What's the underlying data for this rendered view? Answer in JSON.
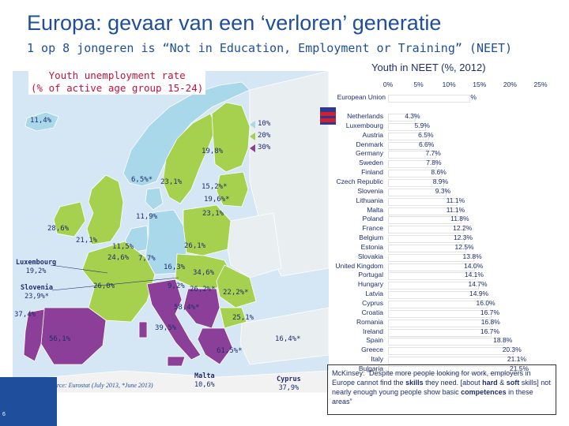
{
  "title": "Europa: gevaar van een ‘verloren’ generatie",
  "subtitle": "1 op 8 jongeren is “Not in Education, Employment or Training” (NEET)",
  "map": {
    "title_line1": "Youth unemployment rate",
    "title_line2": "(% of active age group 15-24)",
    "legend": [
      "10%",
      "20%",
      "30%"
    ],
    "labels": [
      {
        "text": "11,4%"
      },
      {
        "text": "19,8%"
      },
      {
        "text": "6,5%*"
      },
      {
        "text": "23,1%"
      },
      {
        "text": "15,2%*"
      },
      {
        "text": "19,6%*"
      },
      {
        "text": "23,1%"
      },
      {
        "text": "11,9%"
      },
      {
        "text": "28,6%"
      },
      {
        "text": "21,1%"
      },
      {
        "text": "11,5%"
      },
      {
        "text": "24,6%"
      },
      {
        "text": "7,7%"
      },
      {
        "text": "26,1%"
      },
      {
        "text": "16,3%"
      },
      {
        "text": "34,6%"
      },
      {
        "text": "26,0%"
      },
      {
        "text": "9,2%"
      },
      {
        "text": "26,2%*"
      },
      {
        "text": "22,2%*"
      },
      {
        "text": "58,4%*"
      },
      {
        "text": "25,1%"
      },
      {
        "text": "39,5%"
      },
      {
        "text": "37,4%"
      },
      {
        "text": "56,1%"
      },
      {
        "text": "16,4%*"
      },
      {
        "text": "61,5%*"
      }
    ],
    "luxembourg_name": "Luxembourg",
    "luxembourg_value": "19,2%",
    "slovenia_name": "Slovenia",
    "slovenia_value": "23,9%*",
    "malta_name": "Malta",
    "malta_value": "10,6%",
    "cyprus_name": "Cyprus",
    "cyprus_value": "37,9%",
    "source": "Source: Eurostat (July 2013, *June 2013)"
  },
  "neet": {
    "title": "Youth in NEET (%, 2012)",
    "ticks": [
      "0%",
      "5%",
      "10%",
      "15%",
      "20%",
      "25%"
    ],
    "eu_label": "European Union",
    "eu_value": "13.2%"
  },
  "chart_data": {
    "type": "bar",
    "title": "Youth in NEET (%, 2012)",
    "xlim": [
      0,
      25
    ],
    "categories": [
      "Netherlands",
      "Luxembourg",
      "Austria",
      "Denmark",
      "Germany",
      "Sweden",
      "Finland",
      "Czech Republic",
      "Slovenia",
      "Lithuania",
      "Malta",
      "Poland",
      "France",
      "Belgium",
      "Estonia",
      "Slovakia",
      "United Kingdom",
      "Portugal",
      "Hungary",
      "Latvia",
      "Cyprus",
      "Croatia",
      "Romania",
      "Ireland",
      "Spain",
      "Greece",
      "Italy",
      "Bulgaria"
    ],
    "values": [
      4.3,
      5.9,
      6.5,
      6.6,
      7.7,
      7.8,
      8.6,
      8.9,
      9.3,
      11.1,
      11.1,
      11.8,
      12.2,
      12.3,
      12.5,
      13.8,
      14.0,
      14.1,
      14.7,
      14.9,
      16.0,
      16.7,
      16.8,
      16.7,
      18.8,
      20.3,
      21.1,
      21.5
    ],
    "labels": [
      "4.3%",
      "5.9%",
      "6.5%",
      "6.6%",
      "7.7%",
      "7.8%",
      "8.6%",
      "8.9%",
      "9.3%",
      "11.1%",
      "11.1%",
      "11.8%",
      "12.2%",
      "12.3%",
      "12.5%",
      "13.8%",
      "14.0%",
      "14.1%",
      "14.7%",
      "14.9%",
      "16.0%",
      "16.7%",
      "16.8%",
      "16.7%",
      "18.8%",
      "20.3%",
      "21.1%",
      "21.5%"
    ],
    "eu_value": 13.2
  },
  "quote": {
    "p1": "McKinsey: “Despite more people looking for work, employers in Europe cannot find the ",
    "b1": "skills",
    "p2": " they need. [about ",
    "b2": "hard",
    "p3": " & ",
    "b3": "soft",
    "p4": " skills] not nearly enough young people show basic ",
    "b4": "competences",
    "p5": " in these areas”"
  },
  "page_number": "6",
  "colors": {
    "title": "#1f4e9c",
    "map_light": "#a9d8ea",
    "map_mid": "#a5d14e",
    "map_dark": "#8b3f98",
    "neet_bar_outline": "#e3e3e3"
  }
}
